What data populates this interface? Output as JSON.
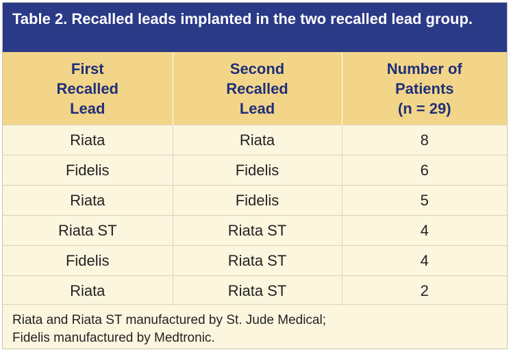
{
  "title": "Table 2. Recalled leads implanted in the two recalled lead group.",
  "columns": [
    [
      "First",
      "Recalled",
      "Lead"
    ],
    [
      "Second",
      "Recalled",
      "Lead"
    ],
    [
      "Number of",
      "Patients",
      "(n = 29)"
    ]
  ],
  "rows": [
    [
      "Riata",
      "Riata",
      "8"
    ],
    [
      "Fidelis",
      "Fidelis",
      "6"
    ],
    [
      "Riata",
      "Fidelis",
      "5"
    ],
    [
      "Riata ST",
      "Riata ST",
      "4"
    ],
    [
      "Fidelis",
      "Riata ST",
      "4"
    ],
    [
      "Riata",
      "Riata ST",
      "2"
    ]
  ],
  "footnote": [
    "Riata and Riata ST manufactured by St. Jude Medical;",
    "Fidelis manufactured by Medtronic."
  ]
}
